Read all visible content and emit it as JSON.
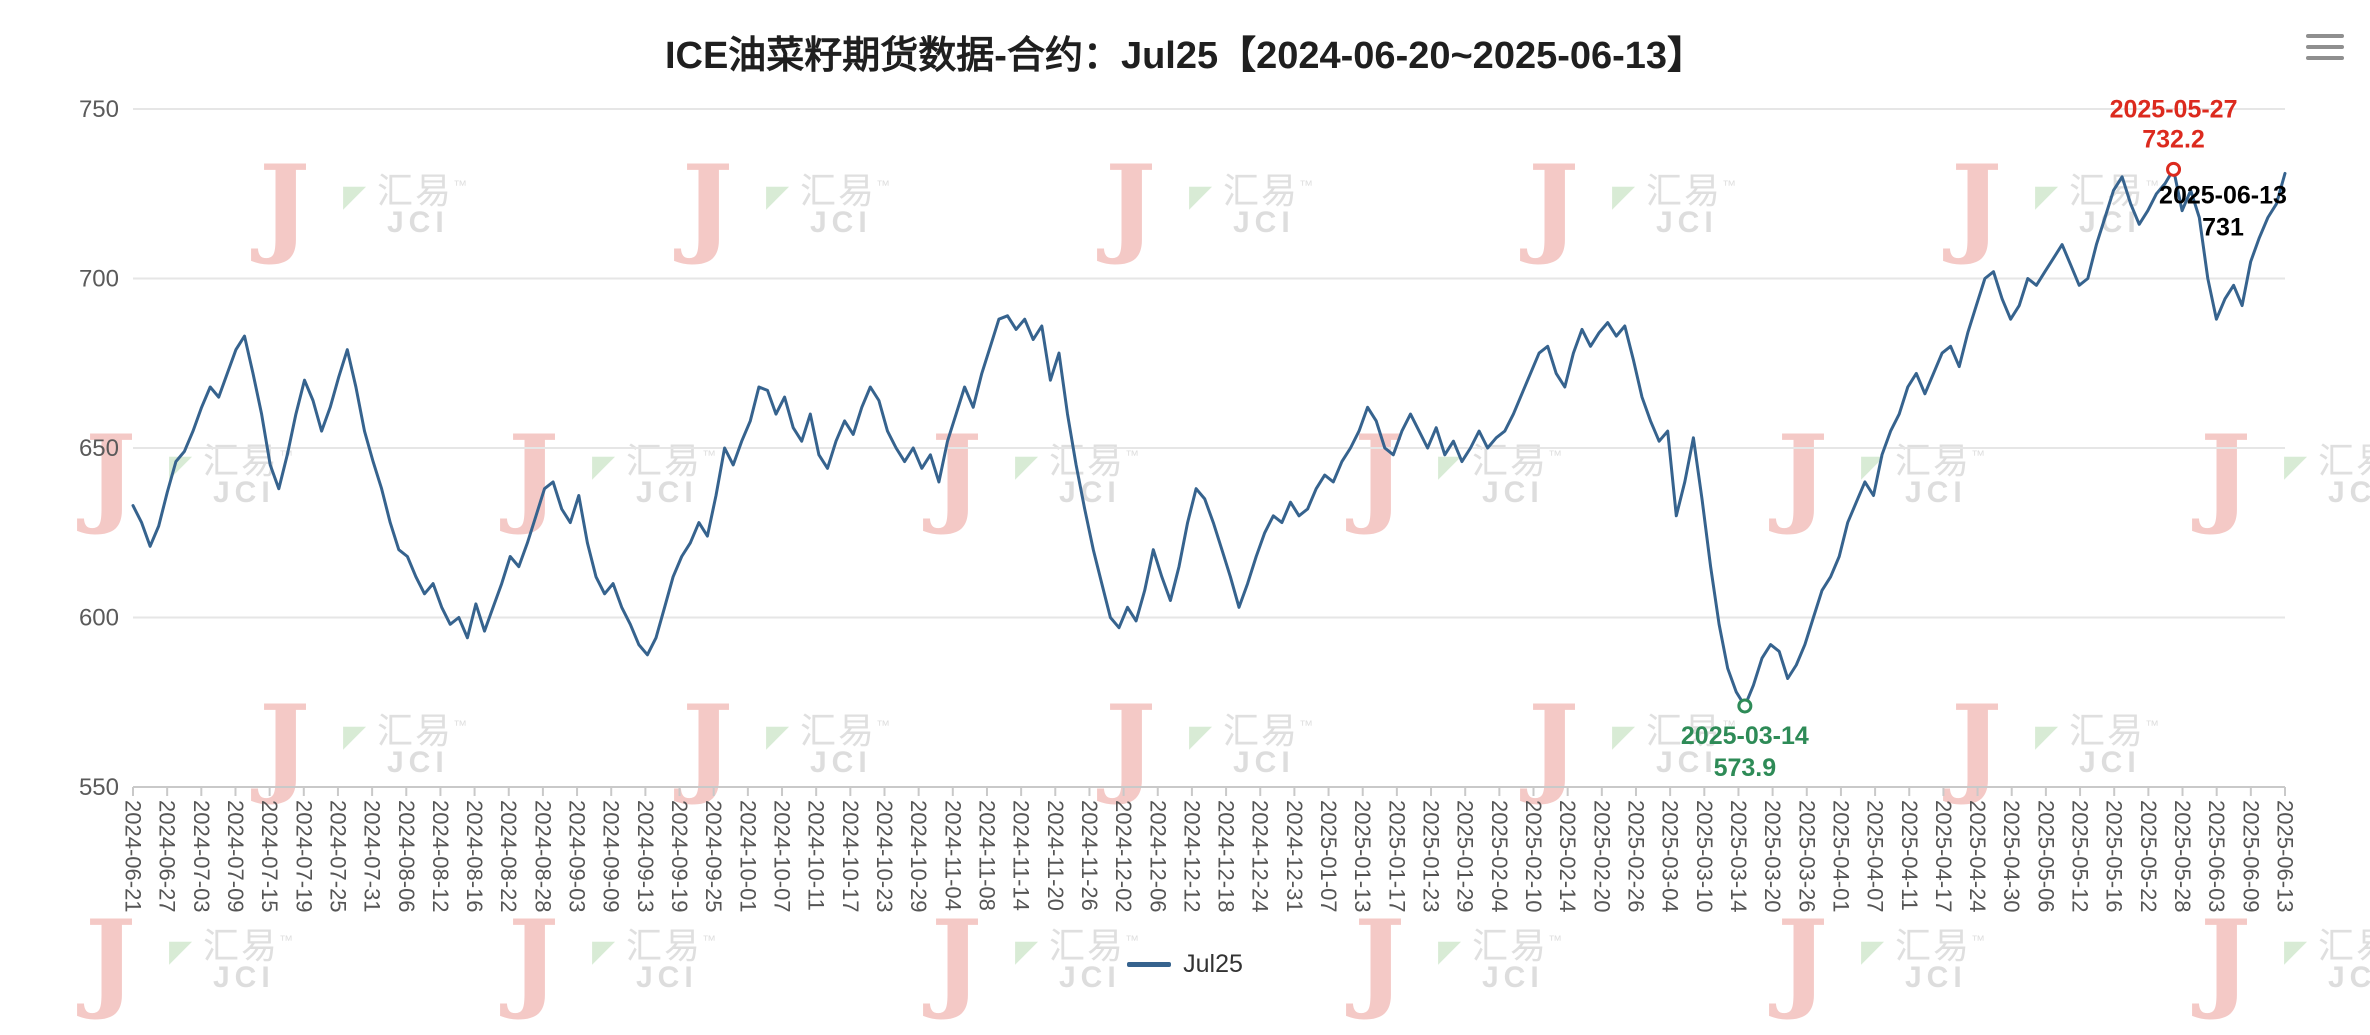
{
  "header": {
    "menu_icon": "hamburger-menu"
  },
  "chart_data": {
    "type": "line",
    "title": "ICE油菜籽期货数据-合约：Jul25【2024-06-20~2025-06-13】",
    "xlabel": "",
    "ylabel": "",
    "ylim": [
      550,
      750
    ],
    "y_ticks": [
      550,
      600,
      650,
      700,
      750
    ],
    "grid": true,
    "legend_position": "bottom",
    "series": [
      {
        "name": "Jul25",
        "color": "#36638e",
        "values": [
          633,
          628,
          621,
          627,
          637,
          646,
          649,
          655,
          662,
          668,
          665,
          672,
          679,
          683,
          672,
          660,
          645,
          638,
          648,
          660,
          670,
          664,
          655,
          662,
          671,
          679,
          668,
          655,
          646,
          638,
          628,
          620,
          618,
          612,
          607,
          610,
          603,
          598,
          600,
          594,
          604,
          596,
          603,
          610,
          618,
          615,
          622,
          630,
          638,
          640,
          632,
          628,
          636,
          622,
          612,
          607,
          610,
          603,
          598,
          592,
          589,
          594,
          603,
          612,
          618,
          622,
          628,
          624,
          636,
          650,
          645,
          652,
          658,
          668,
          667,
          660,
          665,
          656,
          652,
          660,
          648,
          644,
          652,
          658,
          654,
          662,
          668,
          664,
          655,
          650,
          646,
          650,
          644,
          648,
          640,
          652,
          660,
          668,
          662,
          672,
          680,
          688,
          689,
          685,
          688,
          682,
          686,
          670,
          678,
          660,
          645,
          632,
          620,
          610,
          600,
          597,
          603,
          599,
          608,
          620,
          612,
          605,
          615,
          628,
          638,
          635,
          628,
          620,
          612,
          603,
          610,
          618,
          625,
          630,
          628,
          634,
          630,
          632,
          638,
          642,
          640,
          646,
          650,
          655,
          662,
          658,
          650,
          648,
          655,
          660,
          655,
          650,
          656,
          648,
          652,
          646,
          650,
          655,
          650,
          653,
          655,
          660,
          666,
          672,
          678,
          680,
          672,
          668,
          678,
          685,
          680,
          684,
          687,
          683,
          686,
          676,
          665,
          658,
          652,
          655,
          630,
          640,
          653,
          635,
          615,
          598,
          585,
          578,
          573.9,
          580,
          588,
          592,
          590,
          582,
          586,
          592,
          600,
          608,
          612,
          618,
          628,
          634,
          640,
          636,
          648,
          655,
          660,
          668,
          672,
          666,
          672,
          678,
          680,
          674,
          684,
          692,
          700,
          702,
          694,
          688,
          692,
          700,
          698,
          702,
          706,
          710,
          704,
          698,
          700,
          710,
          718,
          726,
          730,
          722,
          716,
          720,
          725,
          728,
          732.2,
          720,
          726,
          718,
          700,
          688,
          694,
          698,
          692,
          705,
          712,
          718,
          722,
          731
        ]
      }
    ],
    "x_tick_labels": [
      "2024-06-21",
      "2024-06-27",
      "2024-07-03",
      "2024-07-09",
      "2024-07-15",
      "2024-07-19",
      "2024-07-25",
      "2024-07-31",
      "2024-08-06",
      "2024-08-12",
      "2024-08-16",
      "2024-08-22",
      "2024-08-28",
      "2024-09-03",
      "2024-09-09",
      "2024-09-13",
      "2024-09-19",
      "2024-09-25",
      "2024-10-01",
      "2024-10-07",
      "2024-10-11",
      "2024-10-17",
      "2024-10-23",
      "2024-10-29",
      "2024-11-04",
      "2024-11-08",
      "2024-11-14",
      "2024-11-20",
      "2024-11-26",
      "2024-12-02",
      "2024-12-06",
      "2024-12-12",
      "2024-12-18",
      "2024-12-24",
      "2024-12-31",
      "2025-01-07",
      "2025-01-13",
      "2025-01-17",
      "2025-01-23",
      "2025-01-29",
      "2025-02-04",
      "2025-02-10",
      "2025-02-14",
      "2025-02-20",
      "2025-02-26",
      "2025-03-04",
      "2025-03-10",
      "2025-03-14",
      "2025-03-20",
      "2025-03-26",
      "2025-04-01",
      "2025-04-07",
      "2025-04-11",
      "2025-04-17",
      "2025-04-24",
      "2025-04-30",
      "2025-05-06",
      "2025-05-12",
      "2025-05-16",
      "2025-05-22",
      "2025-05-28",
      "2025-06-03",
      "2025-06-09",
      "2025-06-13"
    ],
    "annotations": [
      {
        "id": "peak",
        "date": "2025-05-27",
        "value": "732.2",
        "index": 238,
        "color": "#dc2a1e",
        "marker": true,
        "dx": 0,
        "dy1": -52,
        "dy2": -22
      },
      {
        "id": "latest",
        "date": "2025-06-13",
        "value": "731",
        "index": 251,
        "color": "#000000",
        "marker": false,
        "dx": -62,
        "dy1": 30,
        "dy2": 62
      },
      {
        "id": "trough",
        "date": "2025-03-14",
        "value": "573.9",
        "index": 188,
        "color": "#2e8b57",
        "marker": true,
        "dx": 0,
        "dy1": 38,
        "dy2": 70
      }
    ]
  },
  "watermark": {
    "letter": "J",
    "cn": "汇易",
    "tm": "™",
    "en": "JCI",
    "triangle_glyph": "◤",
    "red": "#ec9e98",
    "green": "#b9dcb4",
    "gray": "#c6c6c6"
  }
}
